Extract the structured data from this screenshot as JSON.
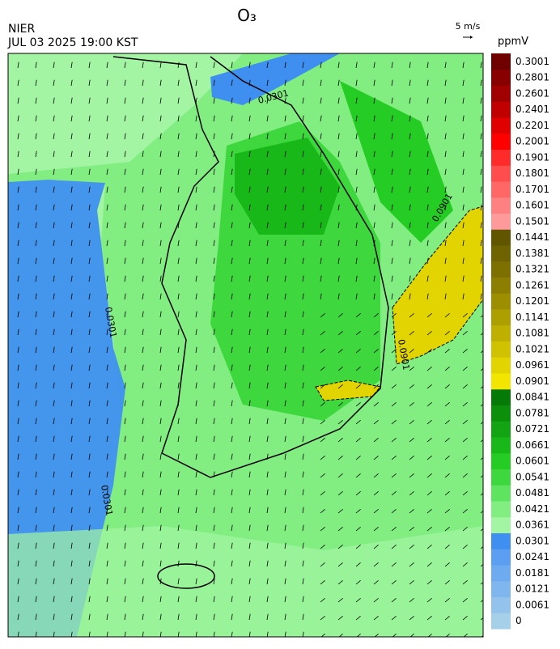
{
  "header": {
    "title": "O₃",
    "agency": "NIER",
    "datetime": "JUL 03 2025 19:00 KST",
    "wind_scale": "5 m/s"
  },
  "map": {
    "contour_labels": [
      "0.0301",
      "0.0301",
      "0.0901",
      "0.0901",
      "0.0301"
    ]
  },
  "colorbar": {
    "unit": "ppmV",
    "levels": [
      {
        "label": "0",
        "color": "#a6cfea"
      },
      {
        "label": "0.0061",
        "color": "#93c2ec"
      },
      {
        "label": "0.0121",
        "color": "#80b6ee"
      },
      {
        "label": "0.0181",
        "color": "#6eaaf0"
      },
      {
        "label": "0.0241",
        "color": "#5c9ef1"
      },
      {
        "label": "0.0301",
        "color": "#3f8ff0"
      },
      {
        "label": "0.0361",
        "color": "#a3f5a3"
      },
      {
        "label": "0.0421",
        "color": "#82ee82"
      },
      {
        "label": "0.0481",
        "color": "#5fe45f"
      },
      {
        "label": "0.0541",
        "color": "#3ed83e"
      },
      {
        "label": "0.0601",
        "color": "#24cc24"
      },
      {
        "label": "0.0661",
        "color": "#19b819"
      },
      {
        "label": "0.0721",
        "color": "#12a412"
      },
      {
        "label": "0.0781",
        "color": "#0c900c"
      },
      {
        "label": "0.0841",
        "color": "#067a06"
      },
      {
        "label": "0.0901",
        "color": "#f2e600"
      },
      {
        "label": "0.0961",
        "color": "#e1d400"
      },
      {
        "label": "0.1021",
        "color": "#d0c200"
      },
      {
        "label": "0.1081",
        "color": "#bfb000"
      },
      {
        "label": "0.1141",
        "color": "#ae9f00"
      },
      {
        "label": "0.1201",
        "color": "#9d8e00"
      },
      {
        "label": "0.1261",
        "color": "#8c7e00"
      },
      {
        "label": "0.1321",
        "color": "#7d6f00"
      },
      {
        "label": "0.1381",
        "color": "#6f6200"
      },
      {
        "label": "0.1441",
        "color": "#625500"
      },
      {
        "label": "0.1501",
        "color": "#ff9a9a"
      },
      {
        "label": "0.1601",
        "color": "#ff8080"
      },
      {
        "label": "0.1701",
        "color": "#ff6666"
      },
      {
        "label": "0.1801",
        "color": "#ff4d4d"
      },
      {
        "label": "0.1901",
        "color": "#ff2a2a"
      },
      {
        "label": "0.2001",
        "color": "#ff0000"
      },
      {
        "label": "0.2201",
        "color": "#e00000"
      },
      {
        "label": "0.2401",
        "color": "#c00000"
      },
      {
        "label": "0.2601",
        "color": "#a00000"
      },
      {
        "label": "0.2801",
        "color": "#880000"
      },
      {
        "label": "0.3001",
        "color": "#6e0000"
      }
    ]
  }
}
